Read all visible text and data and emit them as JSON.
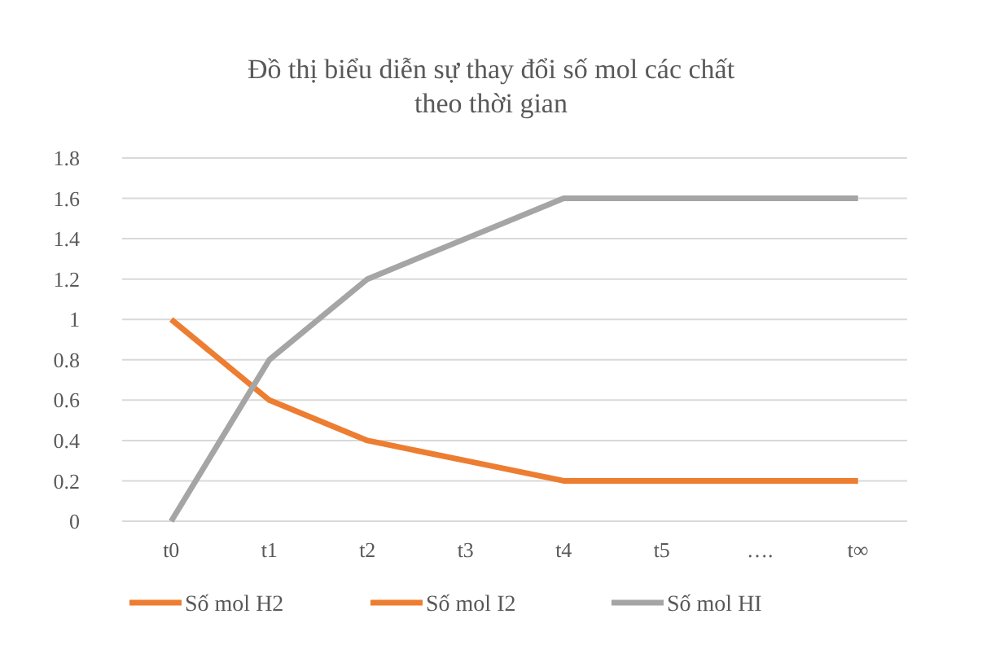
{
  "chart_data": {
    "type": "line",
    "title": "Đồ thị biểu diễn sự thay đổi số mol các chất\ntheo thời gian",
    "categories": [
      "t0",
      "t1",
      "t2",
      "t3",
      "t4",
      "t5",
      "….",
      "t∞"
    ],
    "series": [
      {
        "name": "Số mol H2",
        "color": "#ed7d31",
        "values": [
          1,
          0.6,
          0.4,
          0.3,
          0.2,
          0.2,
          0.2,
          0.2
        ]
      },
      {
        "name": "Số mol I2",
        "color": "#ed7d31",
        "values": [
          null,
          null,
          null,
          null,
          null,
          null,
          null,
          null
        ]
      },
      {
        "name": "Số mol HI",
        "color": "#a5a5a5",
        "values": [
          0,
          0.8,
          1.2,
          1.4,
          1.6,
          1.6,
          1.6,
          1.6
        ]
      }
    ],
    "ylim": [
      0,
      1.8
    ],
    "yticks": [
      0,
      0.2,
      0.4,
      0.6,
      0.8,
      1,
      1.2,
      1.4,
      1.6,
      1.8
    ],
    "grid": "y",
    "legend": "bottom",
    "marker": "none",
    "line_style": "solid"
  }
}
